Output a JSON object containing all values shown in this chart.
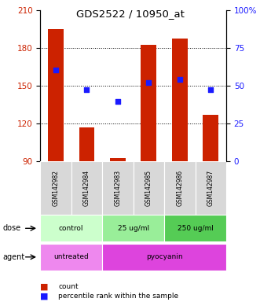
{
  "title": "GDS2522 / 10950_at",
  "samples": [
    "GSM142982",
    "GSM142984",
    "GSM142983",
    "GSM142985",
    "GSM142986",
    "GSM142987"
  ],
  "bar_tops": [
    195,
    117,
    93,
    183,
    188,
    127
  ],
  "bar_base": 90,
  "percentile_values": [
    163,
    147,
    138,
    153,
    155,
    147
  ],
  "ylim_left": [
    90,
    210
  ],
  "ylim_right": [
    0,
    100
  ],
  "yticks_left": [
    90,
    120,
    150,
    180,
    210
  ],
  "yticks_right": [
    0,
    25,
    50,
    75,
    100
  ],
  "ytick_labels_right": [
    "0",
    "25",
    "50",
    "75",
    "100%"
  ],
  "bar_color": "#cc2200",
  "dot_color": "#1a1aff",
  "grid_color": "#000000",
  "dose_groups": [
    {
      "label": "control",
      "start": 0,
      "end": 2,
      "color": "#ccffcc"
    },
    {
      "label": "25 ug/ml",
      "start": 2,
      "end": 4,
      "color": "#99ee99"
    },
    {
      "label": "250 ug/ml",
      "start": 4,
      "end": 6,
      "color": "#55cc55"
    }
  ],
  "agent_groups": [
    {
      "label": "untreated",
      "start": 0,
      "end": 2,
      "color": "#ee88ee"
    },
    {
      "label": "pyocyanin",
      "start": 2,
      "end": 6,
      "color": "#dd44dd"
    }
  ],
  "legend_bar_color": "#cc2200",
  "legend_dot_color": "#1a1aff",
  "legend_count_label": "count",
  "legend_percentile_label": "percentile rank within the sample",
  "xlabel_dose": "dose",
  "xlabel_agent": "agent",
  "tick_label_color_left": "#cc2200",
  "tick_label_color_right": "#1a1aff",
  "bg_color": "#ffffff"
}
